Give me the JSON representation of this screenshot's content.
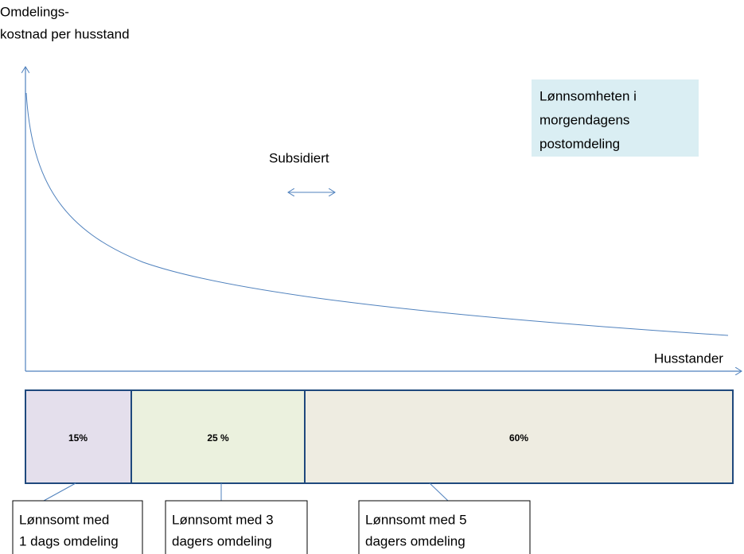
{
  "y_axis_label": [
    "Omdelings-",
    "kostnad per husstand"
  ],
  "x_axis_label": "Husstander",
  "title_box": [
    "Lønnsomheten i",
    "morgendagens",
    "postomdeling"
  ],
  "annotation": "Subsidiert",
  "segments": [
    "15%",
    "25 %",
    "60%"
  ],
  "callouts": [
    [
      "Lønnsomt med",
      "1 dags omdeling"
    ],
    [
      "Lønnsomt med 3",
      "dagers omdeling"
    ],
    [
      "Lønnsomt med 5",
      "dagers omdeling"
    ]
  ]
}
